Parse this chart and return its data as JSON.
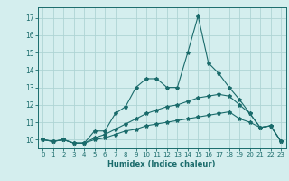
{
  "xlabel": "Humidex (Indice chaleur)",
  "xlim": [
    -0.5,
    23.5
  ],
  "ylim": [
    9.5,
    17.6
  ],
  "xticks": [
    0,
    1,
    2,
    3,
    4,
    5,
    6,
    7,
    8,
    9,
    10,
    11,
    12,
    13,
    14,
    15,
    16,
    17,
    18,
    19,
    20,
    21,
    22,
    23
  ],
  "yticks": [
    10,
    11,
    12,
    13,
    14,
    15,
    16,
    17
  ],
  "bg_color": "#d4eeee",
  "line_color": "#1a6b6b",
  "grid_color": "#aed4d4",
  "line1_x": [
    0,
    1,
    2,
    3,
    4,
    5,
    6,
    7,
    8,
    9,
    10,
    11,
    12,
    13,
    14,
    15,
    16,
    17,
    18,
    19,
    20,
    21,
    22,
    23
  ],
  "line1_y": [
    10.0,
    9.9,
    10.0,
    9.8,
    9.8,
    10.5,
    10.5,
    11.5,
    11.9,
    13.0,
    13.5,
    13.5,
    13.0,
    13.0,
    15.0,
    17.1,
    14.4,
    13.8,
    13.0,
    12.3,
    11.5,
    10.7,
    10.8,
    9.9
  ],
  "line2_x": [
    0,
    1,
    2,
    3,
    4,
    5,
    6,
    7,
    8,
    9,
    10,
    11,
    12,
    13,
    14,
    15,
    16,
    17,
    18,
    19,
    20,
    21,
    22,
    23
  ],
  "line2_y": [
    10.0,
    9.9,
    10.0,
    9.8,
    9.8,
    10.1,
    10.3,
    10.6,
    10.9,
    11.2,
    11.5,
    11.7,
    11.9,
    12.0,
    12.2,
    12.4,
    12.5,
    12.6,
    12.5,
    12.0,
    11.5,
    10.7,
    10.8,
    9.9
  ],
  "line3_x": [
    0,
    1,
    2,
    3,
    4,
    5,
    6,
    7,
    8,
    9,
    10,
    11,
    12,
    13,
    14,
    15,
    16,
    17,
    18,
    19,
    20,
    21,
    22,
    23
  ],
  "line3_y": [
    10.0,
    9.9,
    10.0,
    9.8,
    9.8,
    10.0,
    10.1,
    10.3,
    10.5,
    10.6,
    10.8,
    10.9,
    11.0,
    11.1,
    11.2,
    11.3,
    11.4,
    11.5,
    11.6,
    11.2,
    11.0,
    10.7,
    10.8,
    9.9
  ]
}
